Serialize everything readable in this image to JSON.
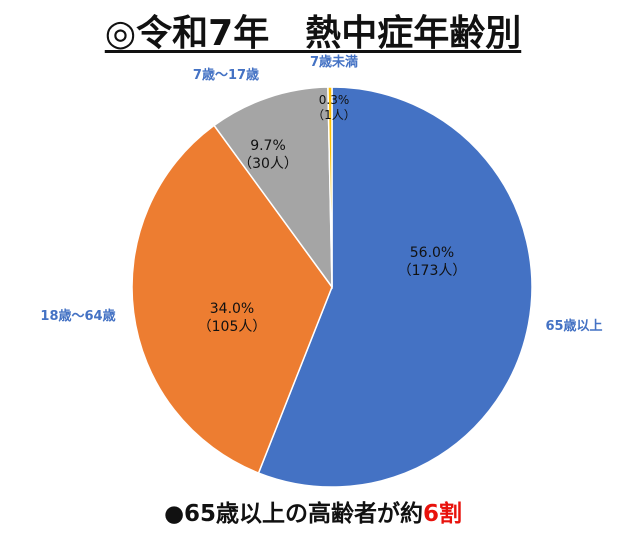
{
  "title": "◎令和7年　熱中症年齢別",
  "note": {
    "text": "●65歳以上の高齢者が約",
    "highlight": "6割"
  },
  "colors": {
    "label_text": "#4472c4",
    "highlight": "#e8120c"
  },
  "chart_data": {
    "type": "pie",
    "title": "◎令和7年　熱中症年齢別",
    "slices": [
      {
        "name": "65歳以上",
        "percent_label": "56.0%",
        "count_label": "（173人）",
        "value": 173,
        "color": "#4472c4",
        "text_color": "#111111"
      },
      {
        "name": "18歳～64歳",
        "percent_label": "34.0%",
        "count_label": "（105人）",
        "value": 105,
        "color": "#ed7d31",
        "text_color": "#111111"
      },
      {
        "name": "7歳～17歳",
        "percent_label": "9.7%",
        "count_label": "（30人）",
        "value": 30,
        "color": "#a5a5a5",
        "text_color": "#111111"
      },
      {
        "name": "7歳未満",
        "percent_label": "0.3%",
        "count_label": "（1人）",
        "value": 1,
        "color": "#ffc000",
        "text_color": "#111111"
      }
    ]
  }
}
